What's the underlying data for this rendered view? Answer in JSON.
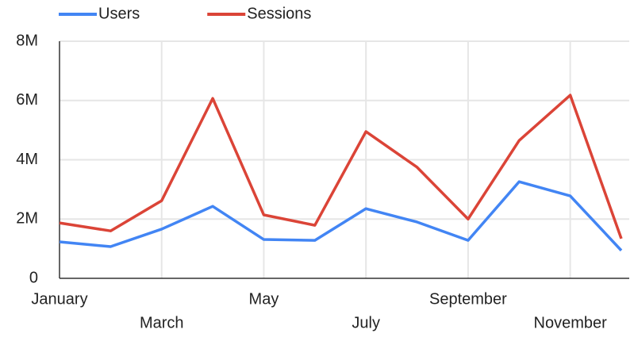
{
  "chart_data": {
    "type": "line",
    "categories": [
      "January",
      null,
      "March",
      null,
      "May",
      null,
      "July",
      null,
      "September",
      null,
      "November",
      null
    ],
    "series": [
      {
        "name": "Users",
        "color": "#4285f4",
        "values": [
          1230000,
          1070000,
          1660000,
          2430000,
          1310000,
          1280000,
          2350000,
          1900000,
          1280000,
          3260000,
          2780000,
          940000
        ]
      },
      {
        "name": "Sessions",
        "color": "#db4437",
        "values": [
          1870000,
          1600000,
          2620000,
          6070000,
          2140000,
          1790000,
          4950000,
          3750000,
          2000000,
          4650000,
          6180000,
          1340000
        ]
      }
    ],
    "ylim": [
      0,
      8000000
    ],
    "yticks": [
      0,
      {
        "value": 2000000,
        "label": "2M"
      },
      {
        "value": 4000000,
        "label": "4M"
      },
      {
        "value": 6000000,
        "label": "6M"
      },
      {
        "value": 8000000,
        "label": "8M"
      }
    ],
    "grid": true,
    "legend": "top"
  }
}
